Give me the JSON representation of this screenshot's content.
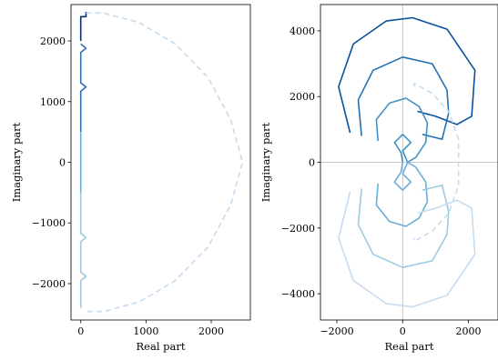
{
  "chart_data": [
    {
      "type": "line",
      "xlabel": "Real part",
      "ylabel": "Imaginary part",
      "xlim": [
        -150,
        2600
      ],
      "ylim": [
        -2600,
        2600
      ],
      "xticks": [
        0,
        1000,
        2000
      ],
      "xtick_labels": [
        "0",
        "1000",
        "2000"
      ],
      "yticks": [
        -2000,
        -1000,
        0,
        1000,
        2000
      ],
      "ytick_labels": [
        "−2000",
        "−1000",
        "0",
        "1000",
        "2000"
      ],
      "grid": false,
      "legend": "none",
      "series": [
        {
          "color": "#08306b",
          "style": "solid",
          "x": [
            0,
            0,
            0,
            80,
            80
          ],
          "y": [
            2000,
            2250,
            2400,
            2400,
            2480
          ]
        },
        {
          "color": "#2f6fb0",
          "style": "solid",
          "x": [
            0,
            80,
            0,
            0,
            80,
            0,
            0
          ],
          "y": [
            1950,
            1880,
            1810,
            1310,
            1240,
            1170,
            500
          ]
        },
        {
          "color": "#6baed6",
          "style": "solid",
          "x": [
            0,
            0
          ],
          "y": [
            500,
            -500
          ]
        },
        {
          "color": "#9ecae1",
          "style": "solid",
          "x": [
            0,
            0,
            80,
            0,
            0,
            80,
            0,
            0
          ],
          "y": [
            -500,
            -1170,
            -1240,
            -1310,
            -1810,
            -1880,
            -1950,
            -2400
          ]
        },
        {
          "color": "#c6dbef",
          "style": "dashed",
          "x": [
            80,
            350,
            900,
            1450,
            1950,
            2300,
            2480,
            2480,
            2300,
            1950,
            1450,
            900,
            350,
            80
          ],
          "y": [
            2460,
            2460,
            2300,
            1950,
            1400,
            700,
            0,
            0,
            -700,
            -1400,
            -1950,
            -2300,
            -2460,
            -2460
          ]
        }
      ]
    },
    {
      "type": "line",
      "xlabel": "Real part",
      "ylabel": "Imaginary part",
      "xlim": [
        -2500,
        2900
      ],
      "ylim": [
        -4800,
        4800
      ],
      "xticks": [
        -2000,
        0,
        2000
      ],
      "xtick_labels": [
        "−2000",
        "0",
        "2000"
      ],
      "yticks": [
        -4000,
        -2000,
        0,
        2000,
        4000
      ],
      "ytick_labels": [
        "−4000",
        "−2000",
        "0",
        "2000",
        "4000"
      ],
      "grid": false,
      "reference_lines": {
        "x": 0,
        "y": 0,
        "color": "#c8c8c8"
      },
      "legend": "none",
      "series": [
        {
          "color": "#08519c",
          "style": "solid",
          "x": [
            -1600,
            -1950,
            -1500,
            -500,
            300,
            1350,
            2200,
            2100,
            1650,
            1000,
            450
          ],
          "y": [
            900,
            2300,
            3600,
            4300,
            4400,
            4050,
            2800,
            1400,
            1150,
            1400,
            1550
          ]
        },
        {
          "color": "#2171b5",
          "style": "solid",
          "x": [
            -1250,
            -1350,
            -900,
            0,
            900,
            1350,
            1400,
            1200,
            1000,
            800,
            600
          ],
          "y": [
            800,
            1900,
            2800,
            3200,
            3000,
            2200,
            1500,
            700,
            750,
            800,
            850
          ]
        },
        {
          "color": "#4292c6",
          "style": "solid",
          "x": [
            -750,
            -800,
            -400,
            100,
            500,
            750,
            700,
            400,
            150,
            0,
            250,
            0,
            -250,
            -50,
            0
          ],
          "y": [
            650,
            1300,
            1800,
            1950,
            1700,
            1200,
            600,
            150,
            0,
            350,
            600,
            850,
            600,
            300,
            0
          ]
        },
        {
          "color": "#6baed6",
          "style": "solid",
          "x": [
            0,
            -50,
            -250,
            0,
            250,
            0,
            150,
            400,
            700,
            750,
            500,
            100,
            -400,
            -800,
            -750
          ],
          "y": [
            0,
            -300,
            -600,
            -850,
            -600,
            -350,
            0,
            -150,
            -600,
            -1200,
            -1700,
            -1950,
            -1800,
            -1300,
            -650
          ]
        },
        {
          "color": "#9ecae1",
          "style": "solid",
          "x": [
            600,
            800,
            1000,
            1200,
            1400,
            1350,
            900,
            0,
            -900,
            -1350,
            -1250
          ],
          "y": [
            -850,
            -800,
            -750,
            -700,
            -1500,
            -2200,
            -3000,
            -3200,
            -2800,
            -1900,
            -800
          ]
        },
        {
          "color": "#c6dbef",
          "style": "solid",
          "x": [
            450,
            1000,
            1650,
            2100,
            2200,
            1350,
            300,
            -500,
            -1500,
            -1950,
            -1600
          ],
          "y": [
            -1550,
            -1400,
            -1150,
            -1400,
            -2800,
            -4050,
            -4400,
            -4300,
            -3600,
            -2300,
            -900
          ]
        },
        {
          "color": "#c6dbef",
          "style": "dashed",
          "x": [
            350,
            350,
            900,
            1400,
            1700,
            1700,
            1400,
            900,
            350,
            350
          ],
          "y": [
            2300,
            2400,
            2100,
            1550,
            700,
            -700,
            -1550,
            -2100,
            -2400,
            -2300
          ]
        }
      ]
    }
  ]
}
